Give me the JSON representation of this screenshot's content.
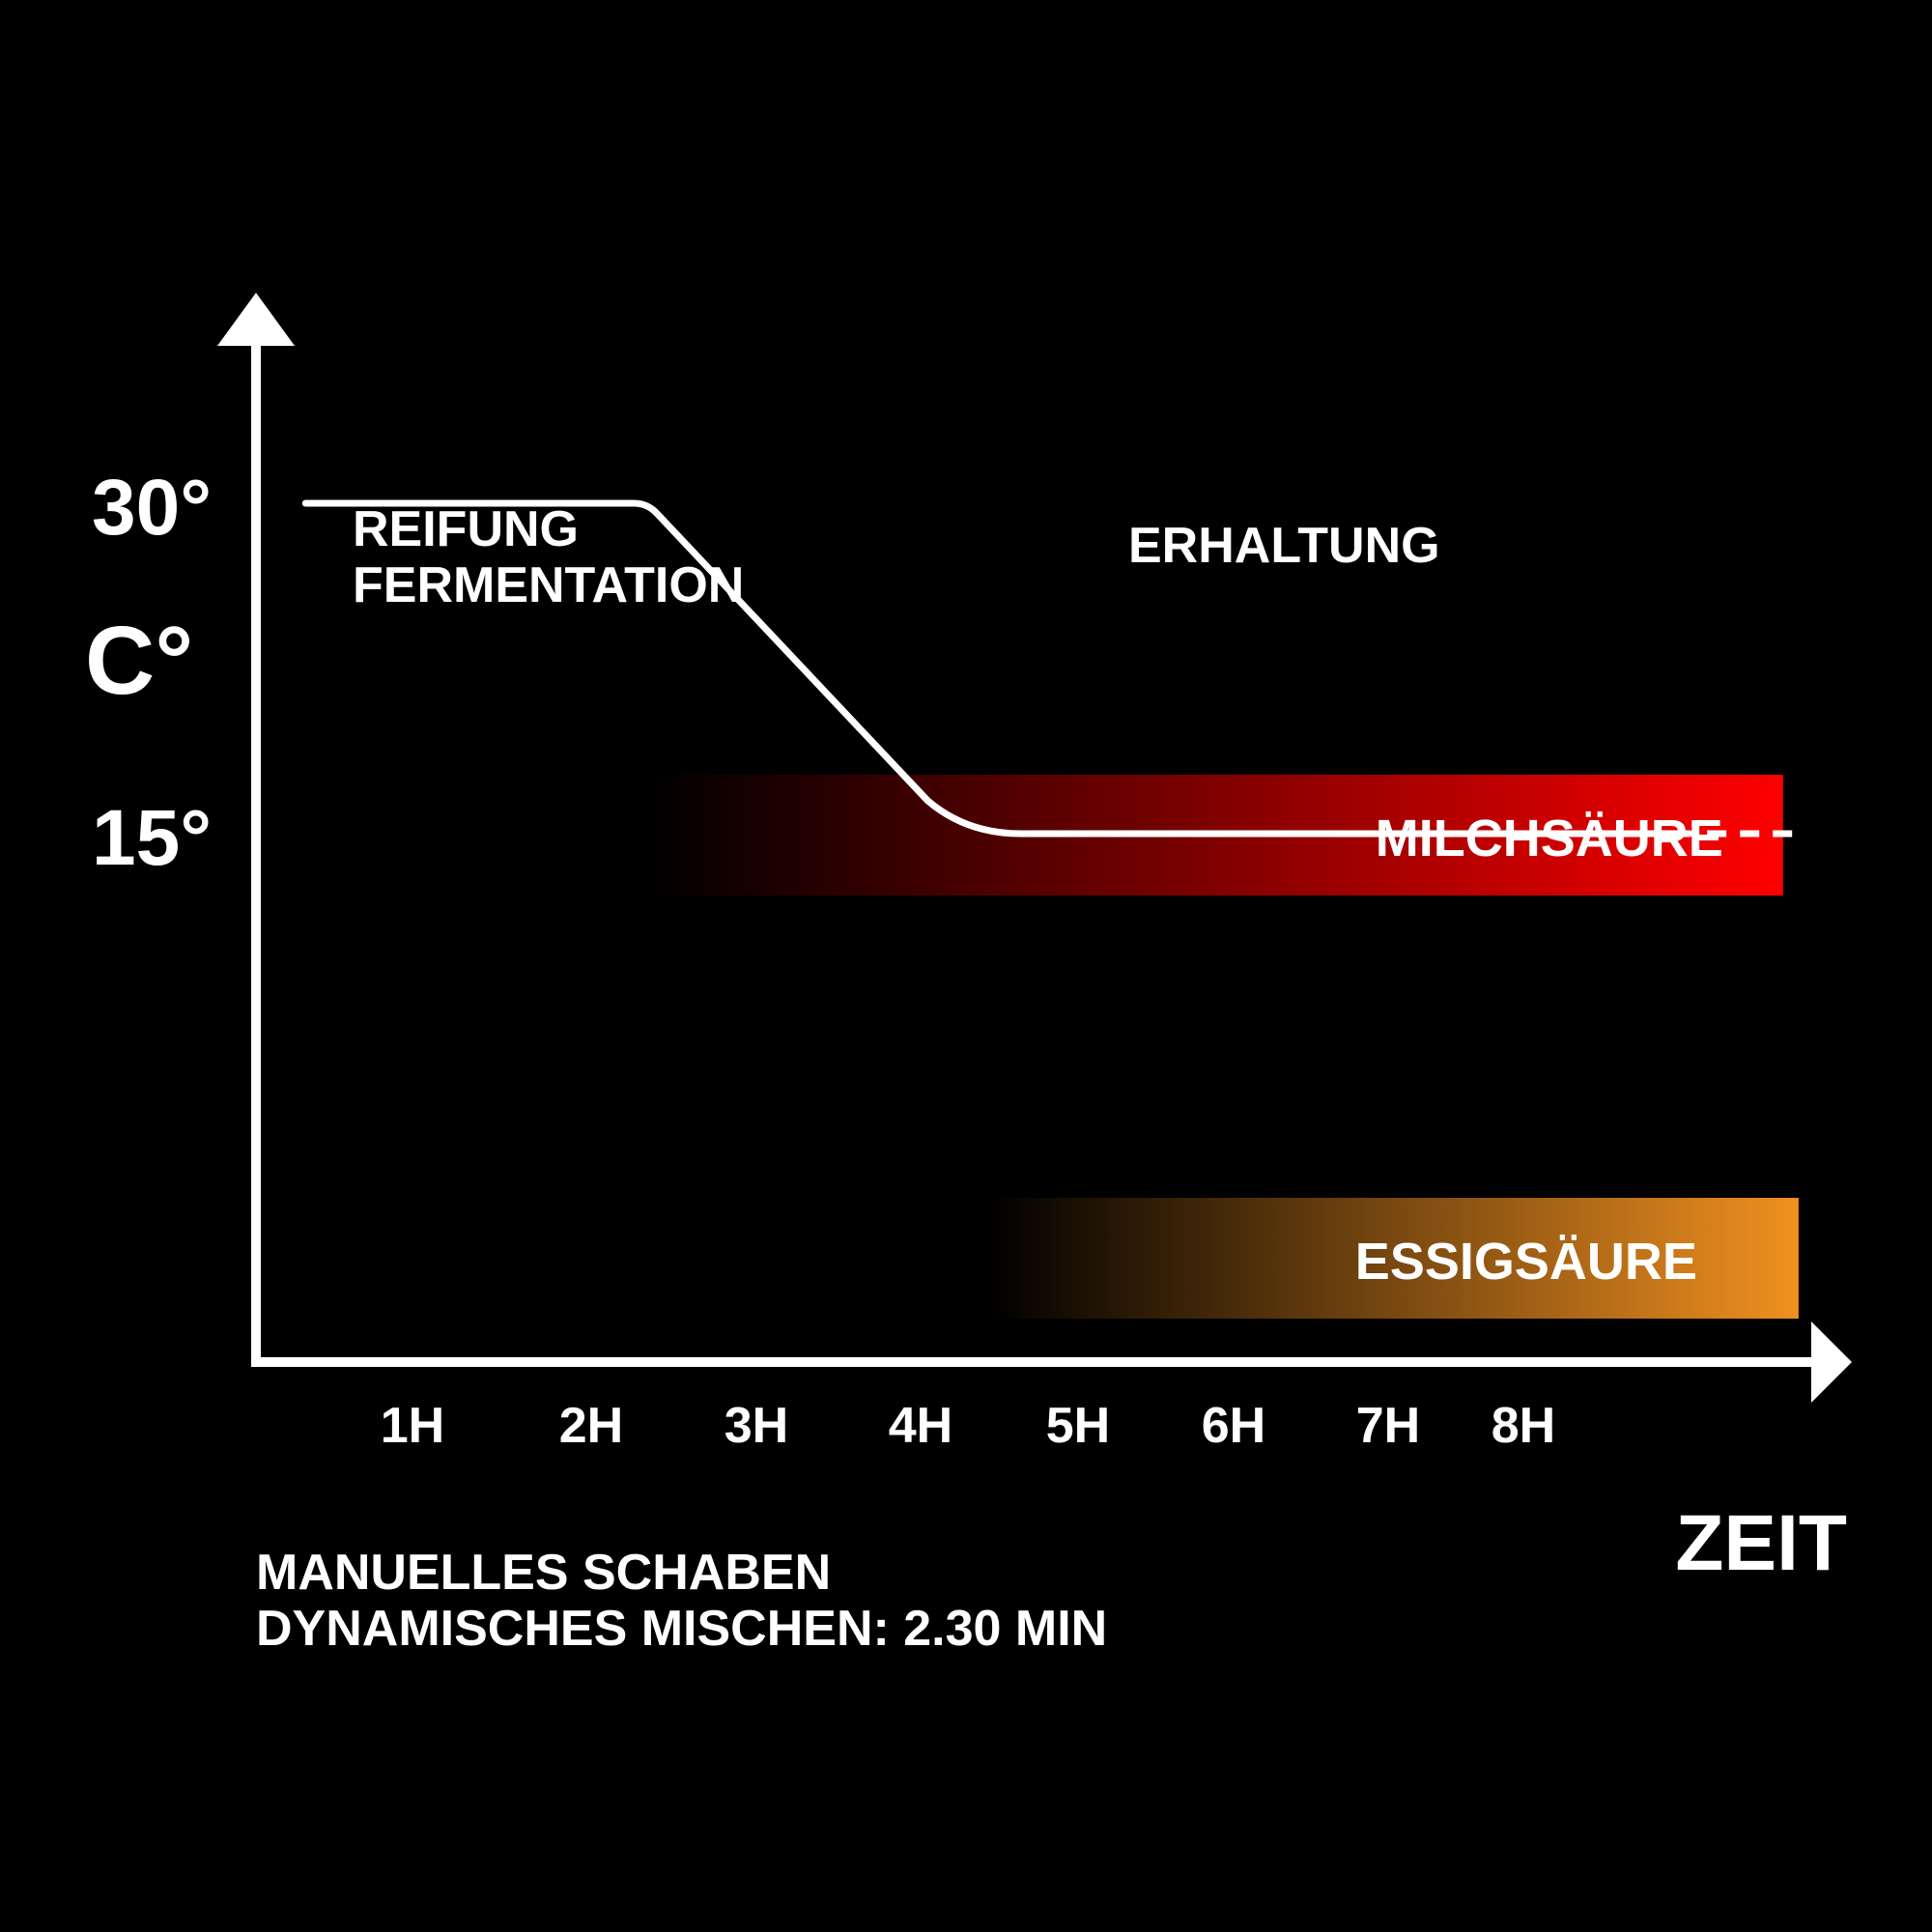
{
  "colors": {
    "background": "#000000",
    "foreground": "#ffffff",
    "milchsaeure": "#ff0000",
    "essigsaeure": "#f09020"
  },
  "axes": {
    "y_label": "C°",
    "x_label": "ZEIT"
  },
  "phases": {
    "phase1_line1": "REIFUNG",
    "phase1_line2": "FERMENTATION",
    "phase2": "ERHALTUNG"
  },
  "notes": {
    "line1": "MANUELLES SCHABEN",
    "line2": "DYNAMISCHES MISCHEN: 2.30 MIN"
  },
  "chart_data": {
    "type": "line",
    "x_ticks": [
      "1H",
      "2H",
      "3H",
      "4H",
      "5H",
      "6H",
      "7H",
      "8H"
    ],
    "y_ticks": [
      "30°",
      "15°"
    ],
    "y_tick_values": [
      30,
      15
    ],
    "series": [
      {
        "x": [
          0.3,
          2.5,
          4.3,
          4.9,
          9.2
        ],
        "y": [
          30,
          30,
          16.5,
          15,
          15
        ],
        "dashed_continuation_to_x": 9.9
      }
    ],
    "bands": [
      {
        "name": "MILCHSÄURE",
        "x_start": 2.5,
        "x_end": 9.8,
        "color": "#ff0000"
      },
      {
        "name": "ESSIGSÄURE",
        "x_start": 4.7,
        "x_end": 9.9,
        "color": "#f09020"
      }
    ]
  }
}
